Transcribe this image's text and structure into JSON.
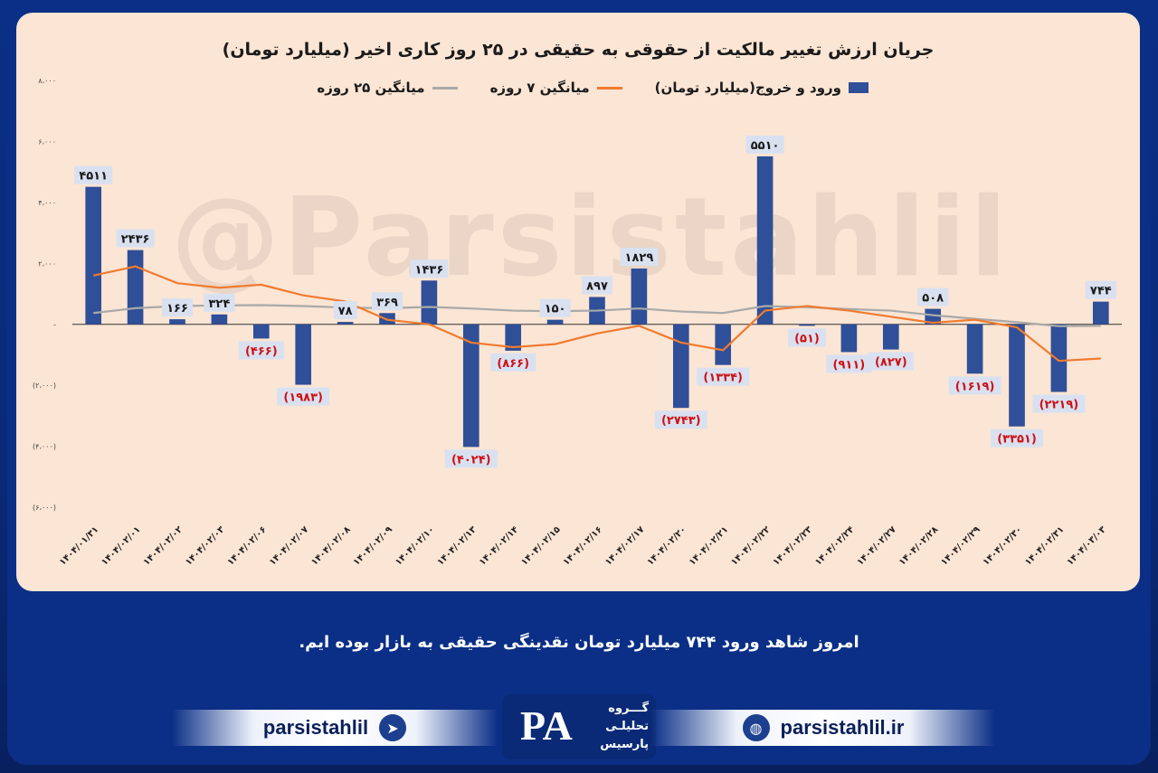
{
  "footer": {
    "message": "امروز شاهد ورود ۷۴۴ میلیارد تومان نقدینگی حقیقی به بازار بوده ایم.",
    "telegram_handle": "parsistahlil",
    "website": "parsistahlil.ir",
    "logo_line1": "گـــروه",
    "logo_line2": "تحلیلـی",
    "logo_line3": "پارسیس"
  },
  "watermark": "@Parsistahlil",
  "colors": {
    "bar": "#2f4f98",
    "ma7": "#f07b2f",
    "ma25": "#a9a9a9",
    "negative_label": "#d01010",
    "positive_label": "#1a1a1a",
    "label_bg": "#d9e1f1"
  },
  "chart_data": {
    "type": "bar",
    "title": "جریان ارزش تغییر مالکیت از حقوقی به حقیقی در ۲۵ روز کاری اخیر (میلیارد تومان)",
    "legend_position": "top",
    "grid": false,
    "ylim": [
      -6000,
      8000
    ],
    "yticks": [
      8000,
      6000,
      4000,
      2000,
      0,
      -2000,
      -4000,
      -6000
    ],
    "ytick_labels": [
      "۸،۰۰۰",
      "۶،۰۰۰",
      "۴،۰۰۰",
      "۲،۰۰۰",
      "-",
      "(۲،۰۰۰)",
      "(۴،۰۰۰)",
      "(۶،۰۰۰)"
    ],
    "categories": [
      "۱۴۰۴/۰۱/۳۱",
      "۱۴۰۴/۰۲/۰۱",
      "۱۴۰۴/۰۲/۰۲",
      "۱۴۰۴/۰۲/۰۳",
      "۱۴۰۴/۰۲/۰۶",
      "۱۴۰۴/۰۲/۰۷",
      "۱۴۰۴/۰۲/۰۸",
      "۱۴۰۴/۰۲/۰۹",
      "۱۴۰۴/۰۲/۱۰",
      "۱۴۰۴/۰۲/۱۳",
      "۱۴۰۴/۰۲/۱۴",
      "۱۴۰۴/۰۲/۱۵",
      "۱۴۰۴/۰۲/۱۶",
      "۱۴۰۴/۰۲/۱۷",
      "۱۴۰۴/۰۲/۲۰",
      "۱۴۰۴/۰۲/۲۱",
      "۱۴۰۴/۰۲/۲۲",
      "۱۴۰۴/۰۲/۲۳",
      "۱۴۰۴/۰۲/۲۴",
      "۱۴۰۴/۰۲/۲۷",
      "۱۴۰۴/۰۲/۲۸",
      "۱۴۰۴/۰۲/۲۹",
      "۱۴۰۴/۰۲/۳۰",
      "۱۴۰۴/۰۲/۳۱",
      "۱۴۰۴/۰۳/۰۳"
    ],
    "series": [
      {
        "name": "ورود و خروج(میلیارد تومان)",
        "type": "bar",
        "values": [
          4511,
          2436,
          166,
          324,
          -466,
          -1983,
          78,
          369,
          1436,
          -4024,
          -866,
          150,
          897,
          1829,
          -2743,
          -1334,
          5510,
          -51,
          -911,
          -827,
          508,
          -1619,
          -3351,
          -2219,
          744
        ],
        "labels": [
          "۴۵۱۱",
          "۲۴۳۶",
          "۱۶۶",
          "۳۲۴",
          "(۴۶۶)",
          "(۱۹۸۳)",
          "۷۸",
          "۳۶۹",
          "۱۴۳۶",
          "(۴۰۲۴)",
          "(۸۶۶)",
          "۱۵۰",
          "۸۹۷",
          "۱۸۲۹",
          "(۲۷۴۳)",
          "(۱۳۳۴)",
          "۵۵۱۰",
          "(۵۱)",
          "(۹۱۱)",
          "(۸۲۷)",
          "۵۰۸",
          "(۱۶۱۹)",
          "(۳۳۵۱)",
          "(۲۲۱۹)",
          "۷۴۴"
        ]
      },
      {
        "name": "میانگین ۷ روزه",
        "type": "line",
        "values": [
          1600,
          1900,
          1350,
          1200,
          1300,
          950,
          750,
          150,
          0,
          -600,
          -750,
          -650,
          -300,
          -50,
          -600,
          -850,
          450,
          600,
          450,
          250,
          50,
          150,
          -100,
          -1200,
          -1120
        ]
      },
      {
        "name": "میانگین ۲۵ روزه",
        "type": "line",
        "values": [
          370,
          530,
          600,
          620,
          630,
          600,
          550,
          530,
          570,
          520,
          450,
          430,
          450,
          520,
          420,
          370,
          600,
          560,
          500,
          450,
          300,
          180,
          70,
          -60,
          -50
        ]
      }
    ]
  }
}
